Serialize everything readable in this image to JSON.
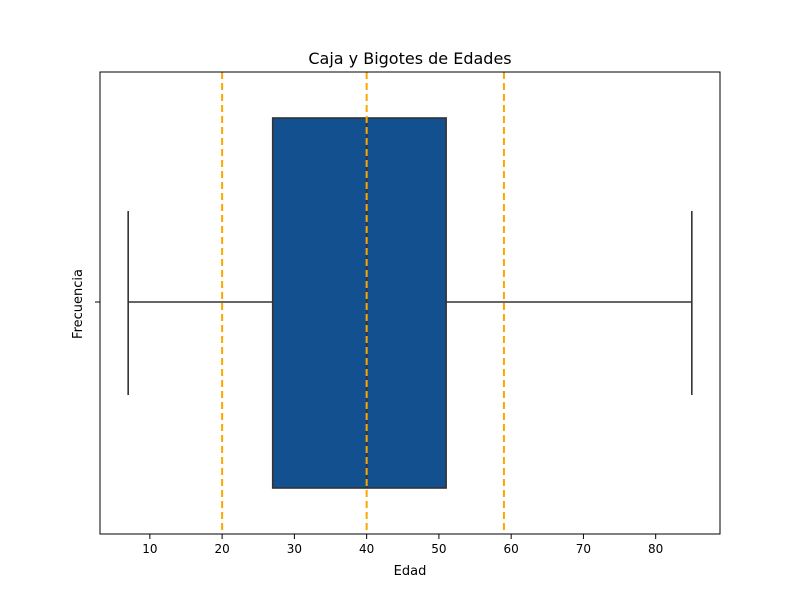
{
  "chart_data": {
    "type": "boxplot",
    "title": "Caja y Bigotes de Edades",
    "xlabel": "Edad",
    "ylabel": "Frecuencia",
    "xlim": [
      3.1,
      88.9
    ],
    "x_ticks": [
      10,
      20,
      30,
      40,
      50,
      60,
      70,
      80
    ],
    "box": {
      "whisker_low": 7,
      "q1": 27,
      "median": 40,
      "q3": 51,
      "whisker_high": 85,
      "fill_color": "#13508f",
      "line_color": "#333333"
    },
    "reference_lines": [
      {
        "x": 20,
        "color": "#ffa500",
        "style": "dashed"
      },
      {
        "x": 40,
        "color": "#ffa500",
        "style": "dashed"
      },
      {
        "x": 59,
        "color": "#ffa500",
        "style": "dashed"
      }
    ],
    "grid": false
  }
}
